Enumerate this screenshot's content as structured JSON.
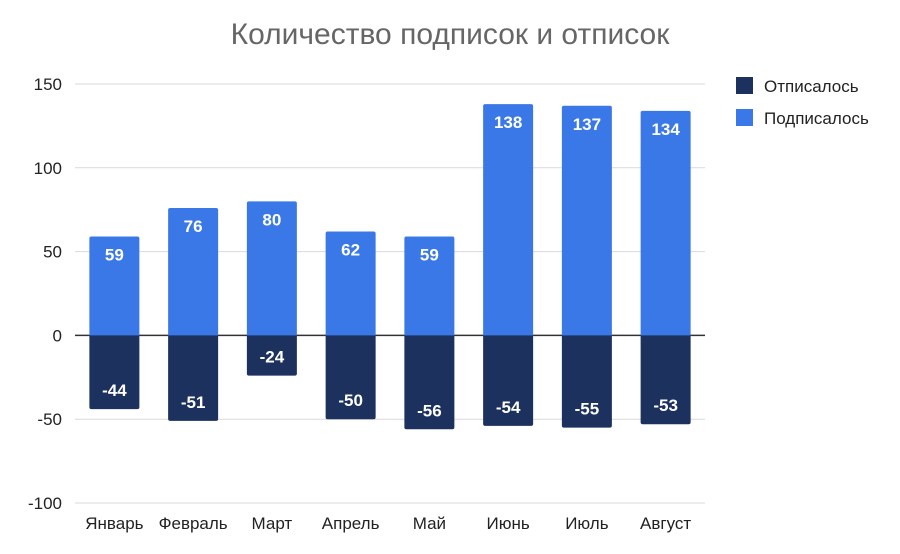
{
  "chart_data": {
    "type": "bar",
    "stacked": true,
    "title": "Количество подписок и отписок",
    "categories": [
      "Январь",
      "Февраль",
      "Март",
      "Апрель",
      "Май",
      "Июнь",
      "Июль",
      "Август"
    ],
    "series": [
      {
        "name": "Отписалось",
        "color": "#1c315e",
        "values": [
          -44,
          -51,
          -24,
          -50,
          -56,
          -54,
          -55,
          -53
        ]
      },
      {
        "name": "Подписалось",
        "color": "#3b78e7",
        "values": [
          59,
          76,
          80,
          62,
          59,
          138,
          137,
          134
        ]
      }
    ],
    "ylim": [
      -100,
      150
    ],
    "yticks": [
      150,
      100,
      50,
      0,
      -50,
      -100
    ],
    "grid": true,
    "legend_position": "right",
    "data_labels": true
  }
}
